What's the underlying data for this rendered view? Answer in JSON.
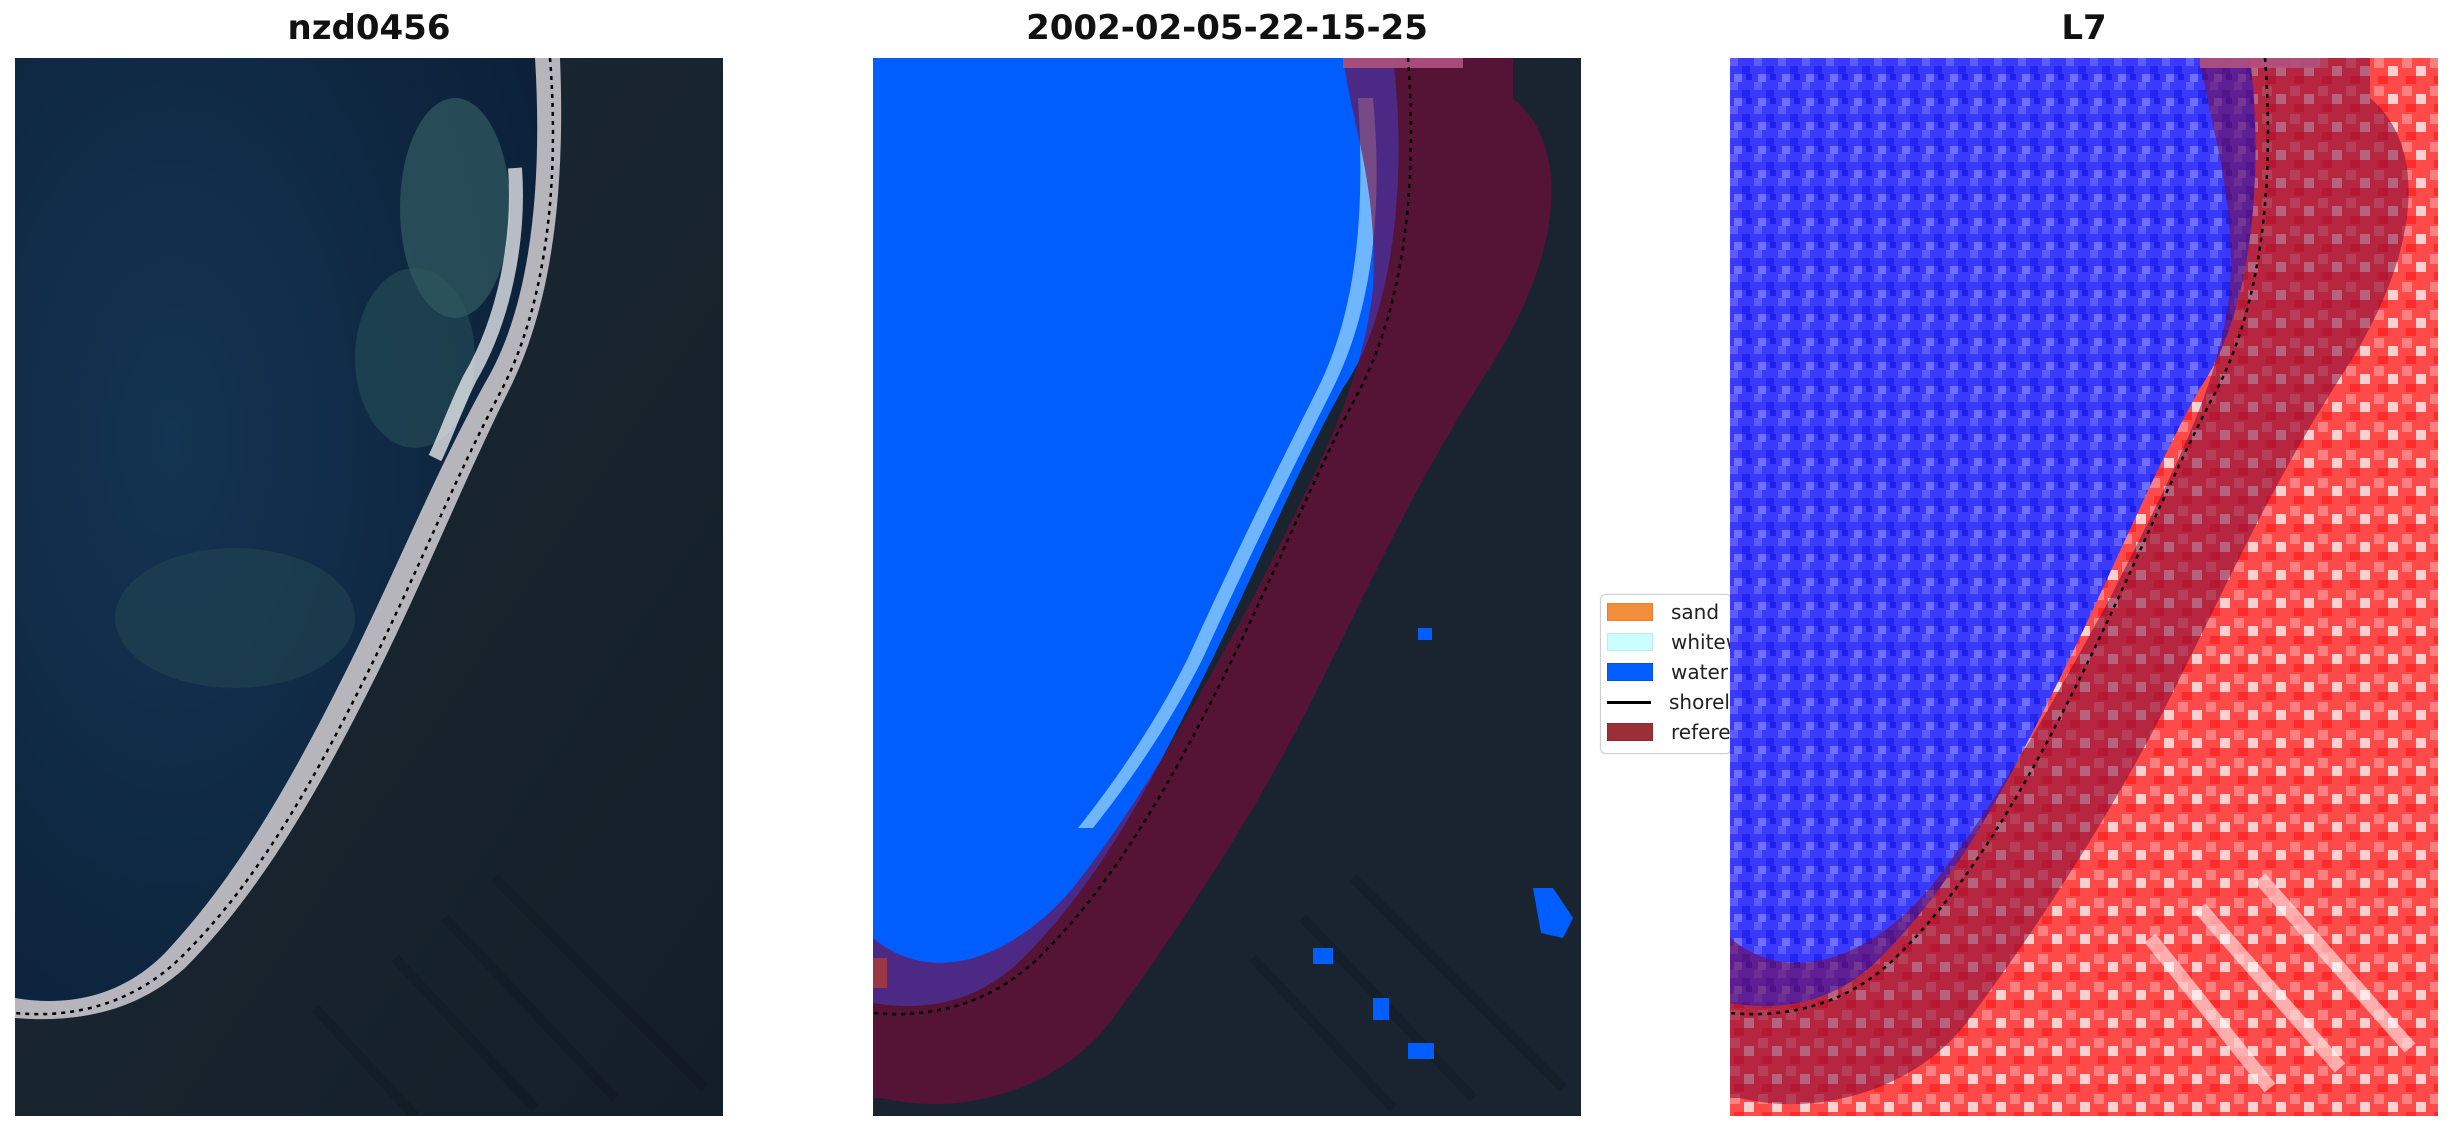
{
  "panels": [
    {
      "title": "nzd0456"
    },
    {
      "title": "2002-02-05-22-15-25"
    },
    {
      "title": "L7"
    }
  ],
  "legend": {
    "items": [
      {
        "label": "sand",
        "color": "#f28e3b",
        "kind": "patch"
      },
      {
        "label": "whitewater",
        "color": "#ccffff",
        "kind": "patch"
      },
      {
        "label": "water",
        "color": "#005eff",
        "kind": "patch"
      },
      {
        "label": "shoreline",
        "color": "#000000",
        "kind": "line"
      },
      {
        "label": "reference shoreline buffer",
        "color": "#9a2f36",
        "kind": "patch"
      }
    ]
  },
  "colors": {
    "land_dark": "#1a2430",
    "ocean": "#0f2840",
    "water_class": "#005eff",
    "buffer": "#7a0a3a",
    "index_negative": "#2b2bff",
    "index_positive": "#ff2020"
  }
}
